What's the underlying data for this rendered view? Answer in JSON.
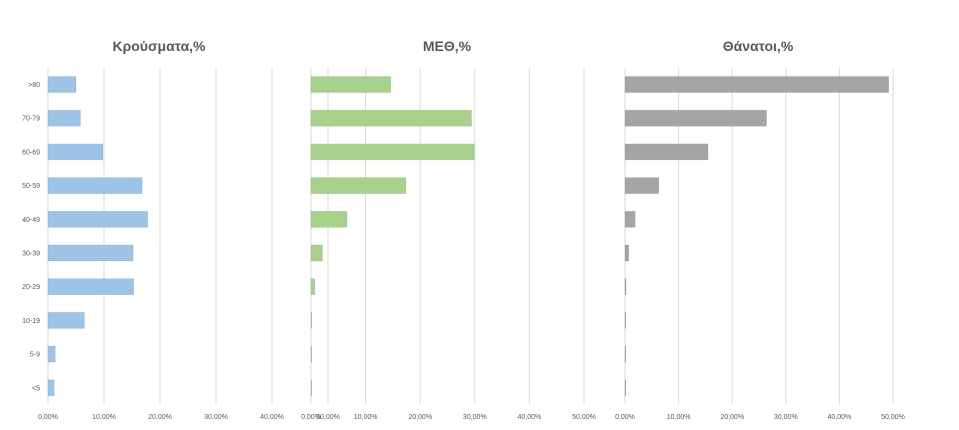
{
  "chart_data": {
    "type": "bar",
    "orientation": "horizontal",
    "categories": [
      ">80",
      "70-79",
      "60-69",
      "50-59",
      "40-49",
      "30-39",
      "20-29",
      "10-19",
      "5-9",
      "<5"
    ],
    "xlim": [
      0,
      50
    ],
    "xticks": [
      "0,00%",
      "10,00%",
      "20,00%",
      "30,00%",
      "40,00%",
      "50,00%"
    ],
    "grid": true,
    "panels": [
      {
        "title": "Κρούσματα,%",
        "color": "#9dc3e6",
        "values": [
          5.0,
          5.8,
          9.8,
          16.8,
          17.8,
          15.2,
          15.3,
          6.5,
          1.3,
          1.1
        ]
      },
      {
        "title": "ΜΕΘ,%",
        "color": "#a9d18e",
        "values": [
          14.6,
          29.4,
          29.9,
          17.4,
          6.6,
          2.1,
          0.7,
          0.1,
          0.1,
          0.1
        ]
      },
      {
        "title": "Θάνατοι,%",
        "color": "#a5a5a5",
        "values": [
          49.2,
          26.4,
          15.5,
          6.3,
          1.9,
          0.7,
          0.2,
          0.1,
          0.0,
          0.0
        ]
      }
    ]
  }
}
